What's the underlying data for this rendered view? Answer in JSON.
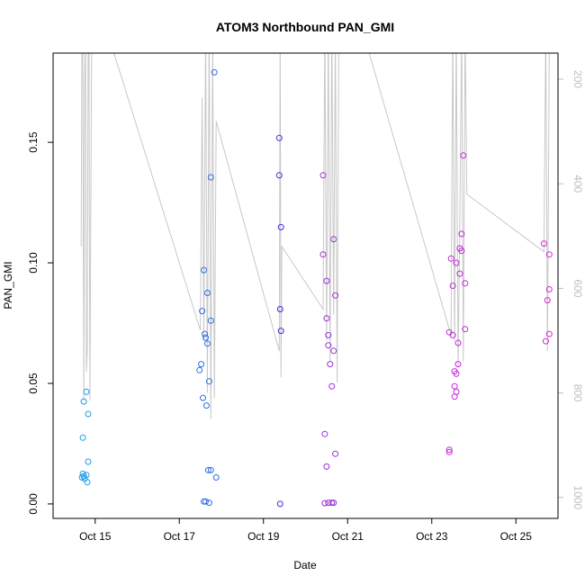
{
  "chart_data": {
    "type": "scatter",
    "title": "ATOM3 Northbound PAN_GMI",
    "xlabel": "Date",
    "ylabel": "PAN_GMI",
    "xlim": [
      "2016-10-14",
      "2016-10-26"
    ],
    "ylim": [
      -0.006,
      0.187
    ],
    "y_ticks": [
      0.0,
      0.05,
      0.1,
      0.15
    ],
    "y_tick_labels": [
      "0.00",
      "0.05",
      "0.10",
      "0.15"
    ],
    "x_ticks": [
      "2016-10-15",
      "2016-10-17",
      "2016-10-19",
      "2016-10-21",
      "2016-10-23",
      "2016-10-25"
    ],
    "x_tick_labels": [
      "Oct 15",
      "Oct 17",
      "Oct 19",
      "Oct 21",
      "Oct 23",
      "Oct 25"
    ],
    "y2_reversed": true,
    "y2_ticks": [
      200,
      400,
      600,
      800,
      1000
    ],
    "y2_tick_labels": [
      "200",
      "400",
      "600",
      "800",
      "1000"
    ],
    "y2_color": "#bebebe",
    "grid": false,
    "legend": "none",
    "series": [
      {
        "color": "#1e9be6",
        "points": [
          [
            "2016-10-14T19:00",
            0.0465
          ],
          [
            "2016-10-14T17:30",
            0.0425
          ],
          [
            "2016-10-14T20:00",
            0.0373
          ],
          [
            "2016-10-14T17:00",
            0.0275
          ],
          [
            "2016-10-14T20:00",
            0.0175
          ],
          [
            "2016-10-14T17:00",
            0.0125
          ],
          [
            "2016-10-14T17:30",
            0.0115
          ],
          [
            "2016-10-14T19:00",
            0.012
          ],
          [
            "2016-10-14T18:00",
            0.0105
          ],
          [
            "2016-10-14T19:30",
            0.009
          ],
          [
            "2016-10-14T16:30",
            0.011
          ]
        ]
      },
      {
        "color": "#2f6ee6",
        "points": [
          [
            "2016-10-17T13:00",
            0.08
          ],
          [
            "2016-10-17T14:00",
            0.097
          ],
          [
            "2016-10-17T14:30",
            0.0705
          ],
          [
            "2016-10-17T15:00",
            0.069
          ],
          [
            "2016-10-17T16:00",
            0.0665
          ],
          [
            "2016-10-17T16:00",
            0.0875
          ],
          [
            "2016-10-17T18:00",
            0.076
          ],
          [
            "2016-10-17T12:30",
            0.058
          ],
          [
            "2016-10-17T11:30",
            0.0555
          ],
          [
            "2016-10-17T13:30",
            0.044
          ],
          [
            "2016-10-17T15:30",
            0.0408
          ],
          [
            "2016-10-17T17:00",
            0.0508
          ],
          [
            "2016-10-17T18:00",
            0.1355
          ],
          [
            "2016-10-17T20:00",
            0.179
          ],
          [
            "2016-10-17T16:30",
            0.014
          ],
          [
            "2016-10-17T18:00",
            0.014
          ],
          [
            "2016-10-17T21:00",
            0.011
          ],
          [
            "2016-10-17T14:00",
            0.001
          ],
          [
            "2016-10-17T15:00",
            0.001
          ],
          [
            "2016-10-17T17:00",
            0.0005
          ]
        ]
      },
      {
        "color": "#3b2fe0",
        "points": [
          [
            "2016-10-19T09:00",
            0.1518
          ],
          [
            "2016-10-19T09:00",
            0.1363
          ],
          [
            "2016-10-19T10:00",
            0.1148
          ],
          [
            "2016-10-19T09:30",
            0.0808
          ],
          [
            "2016-10-19T10:00",
            0.0718
          ],
          [
            "2016-10-19T09:30",
            0.0
          ]
        ]
      },
      {
        "color": "#9b2fd9",
        "points": [
          [
            "2016-10-20T10:00",
            0.1363
          ],
          [
            "2016-10-20T10:00",
            0.1035
          ],
          [
            "2016-10-20T12:00",
            0.0925
          ],
          [
            "2016-10-20T12:00",
            0.077
          ],
          [
            "2016-10-20T13:00",
            0.07
          ],
          [
            "2016-10-20T13:00",
            0.0658
          ],
          [
            "2016-10-20T14:00",
            0.058
          ],
          [
            "2016-10-20T16:00",
            0.0635
          ],
          [
            "2016-10-20T15:00",
            0.0488
          ],
          [
            "2016-10-20T16:00",
            0.1098
          ],
          [
            "2016-10-20T17:00",
            0.0865
          ],
          [
            "2016-10-20T11:00",
            0.029
          ],
          [
            "2016-10-20T17:00",
            0.0208
          ],
          [
            "2016-10-20T12:00",
            0.0155
          ],
          [
            "2016-10-20T11:00",
            0.0003
          ],
          [
            "2016-10-20T13:00",
            0.0005
          ],
          [
            "2016-10-20T15:00",
            0.0005
          ],
          [
            "2016-10-20T16:00",
            0.0005
          ]
        ]
      },
      {
        "color": "#c02ad6",
        "points": [
          [
            "2016-10-23T11:00",
            0.1018
          ],
          [
            "2016-10-23T14:00",
            0.1
          ],
          [
            "2016-10-23T16:00",
            0.106
          ],
          [
            "2016-10-23T17:00",
            0.105
          ],
          [
            "2016-10-23T17:00",
            0.112
          ],
          [
            "2016-10-23T18:00",
            0.1445
          ],
          [
            "2016-10-23T12:00",
            0.0905
          ],
          [
            "2016-10-23T16:00",
            0.0955
          ],
          [
            "2016-10-23T19:00",
            0.0915
          ],
          [
            "2016-10-23T10:00",
            0.0712
          ],
          [
            "2016-10-23T12:00",
            0.07
          ],
          [
            "2016-10-23T15:00",
            0.0668
          ],
          [
            "2016-10-23T19:00",
            0.0725
          ],
          [
            "2016-10-23T15:00",
            0.058
          ],
          [
            "2016-10-23T13:00",
            0.055
          ],
          [
            "2016-10-23T14:00",
            0.054
          ],
          [
            "2016-10-23T13:00",
            0.0488
          ],
          [
            "2016-10-23T14:00",
            0.0465
          ],
          [
            "2016-10-23T13:00",
            0.0445
          ],
          [
            "2016-10-23T10:00",
            0.0225
          ],
          [
            "2016-10-23T10:00",
            0.0215
          ]
        ]
      },
      {
        "color": "#d62ad0",
        "points": [
          [
            "2016-10-25T16:00",
            0.108
          ],
          [
            "2016-10-25T19:00",
            0.1035
          ],
          [
            "2016-10-25T19:00",
            0.089
          ],
          [
            "2016-10-25T18:00",
            0.0845
          ],
          [
            "2016-10-25T19:00",
            0.0705
          ],
          [
            "2016-10-25T17:00",
            0.0675
          ]
        ]
      }
    ],
    "secondary_line": {
      "color": "#c8c8c8",
      "y_axis": "right_reversed",
      "points": [
        [
          "2016-10-14T16:00",
          520
        ],
        [
          "2016-10-14T16:30",
          100
        ],
        [
          "2016-10-14T17:00",
          160
        ],
        [
          "2016-10-14T17:30",
          815
        ],
        [
          "2016-10-14T18:00",
          200
        ],
        [
          "2016-10-14T18:30",
          100
        ],
        [
          "2016-10-14T19:00",
          760
        ],
        [
          "2016-10-14T19:30",
          720
        ],
        [
          "2016-10-14T20:00",
          100
        ],
        [
          "2016-10-14T20:30",
          160
        ],
        [
          "2016-10-14T21:00",
          815
        ],
        [
          "2016-10-14T22:00",
          100
        ],
        [
          "2016-10-15T07:00",
          110
        ],
        [
          "2016-10-17T12:00",
          680
        ],
        [
          "2016-10-17T13:00",
          235
        ],
        [
          "2016-10-17T14:00",
          700
        ],
        [
          "2016-10-17T15:00",
          100
        ],
        [
          "2016-10-17T16:00",
          800
        ],
        [
          "2016-10-17T17:00",
          100
        ],
        [
          "2016-10-17T18:00",
          850
        ],
        [
          "2016-10-17T19:00",
          120
        ],
        [
          "2016-10-17T20:00",
          810
        ],
        [
          "2016-10-17T21:00",
          280
        ],
        [
          "2016-10-19T09:00",
          720
        ],
        [
          "2016-10-19T09:30",
          100
        ],
        [
          "2016-10-19T10:00",
          770
        ],
        [
          "2016-10-19T10:30",
          520
        ],
        [
          "2016-10-20T10:00",
          640
        ],
        [
          "2016-10-20T11:00",
          100
        ],
        [
          "2016-10-20T12:00",
          700
        ],
        [
          "2016-10-20T13:00",
          100
        ],
        [
          "2016-10-20T14:00",
          740
        ],
        [
          "2016-10-20T15:00",
          100
        ],
        [
          "2016-10-20T16:00",
          650
        ],
        [
          "2016-10-20T17:00",
          110
        ],
        [
          "2016-10-20T18:00",
          780
        ],
        [
          "2016-10-20T19:00",
          100
        ],
        [
          "2016-10-21T08:00",
          100
        ],
        [
          "2016-10-23T11:00",
          690
        ],
        [
          "2016-10-23T12:00",
          100
        ],
        [
          "2016-10-23T13:00",
          700
        ],
        [
          "2016-10-23T14:00",
          100
        ],
        [
          "2016-10-23T15:00",
          750
        ],
        [
          "2016-10-23T16:00",
          480
        ],
        [
          "2016-10-23T17:00",
          100
        ],
        [
          "2016-10-23T18:00",
          740
        ],
        [
          "2016-10-23T19:00",
          100
        ],
        [
          "2016-10-23T20:00",
          420
        ],
        [
          "2016-10-25T16:00",
          530
        ],
        [
          "2016-10-25T17:00",
          100
        ],
        [
          "2016-10-25T18:00",
          720
        ],
        [
          "2016-10-25T19:00",
          150
        ],
        [
          "2016-10-25T20:00",
          100
        ]
      ]
    }
  }
}
